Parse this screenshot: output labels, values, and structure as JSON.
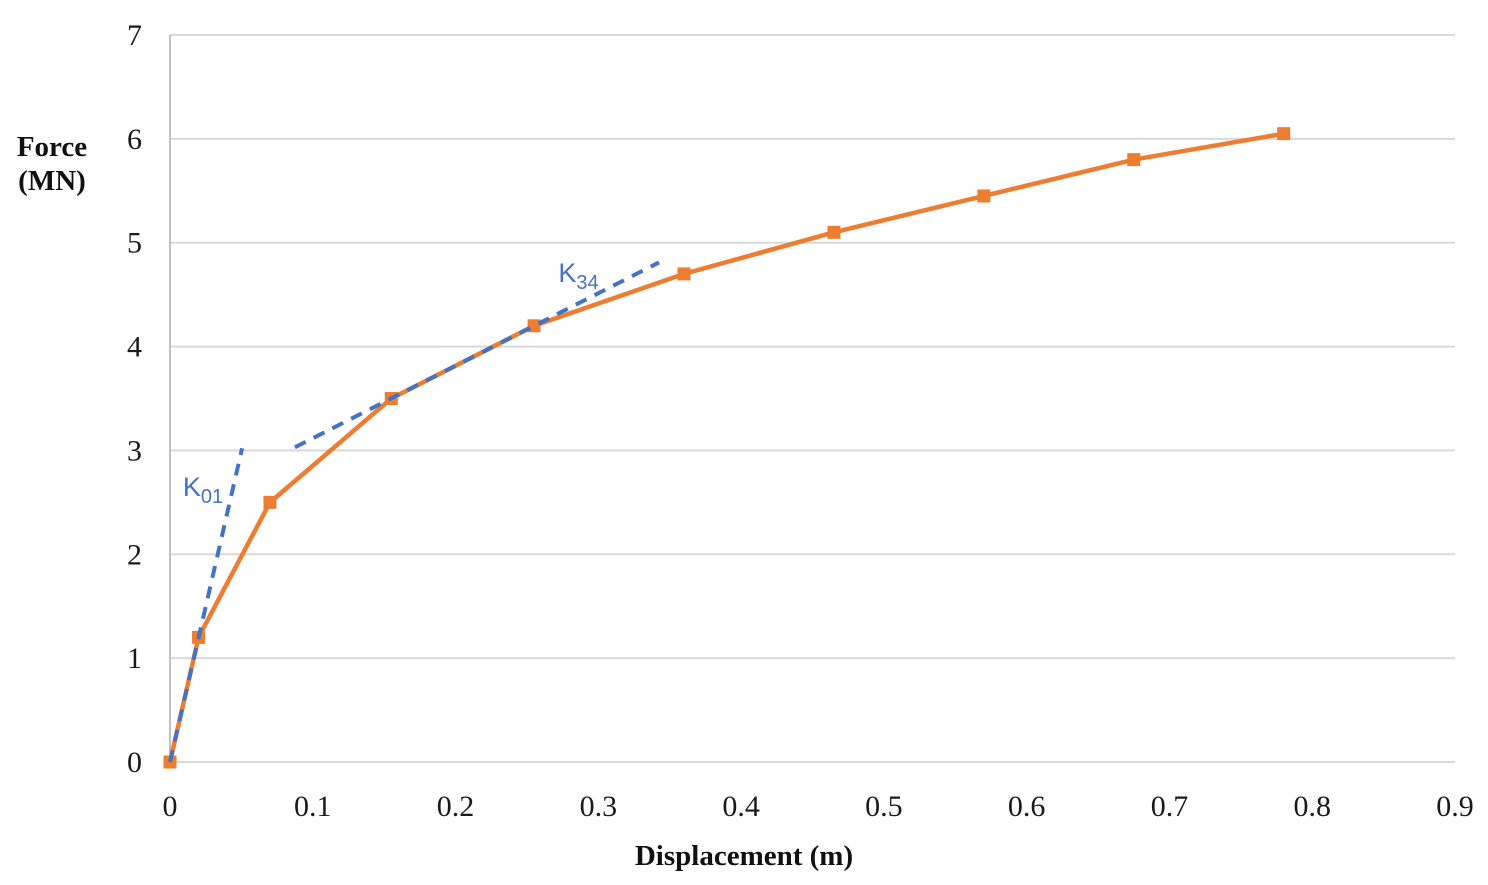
{
  "chart_data": {
    "type": "line",
    "title": "",
    "xlabel": "Displacement (m)",
    "ylabel": "Force (MN)",
    "ylabel_lines": [
      "Force",
      "(MN)"
    ],
    "xlim": [
      0,
      0.9
    ],
    "ylim": [
      0,
      7
    ],
    "x_ticks": [
      0,
      0.1,
      0.2,
      0.3,
      0.4,
      0.5,
      0.6,
      0.7,
      0.8,
      0.9
    ],
    "x_tick_labels": [
      "0",
      "0.1",
      "0.2",
      "0.3",
      "0.4",
      "0.5",
      "0.6",
      "0.7",
      "0.8",
      "0.9"
    ],
    "y_ticks": [
      0,
      1,
      2,
      3,
      4,
      5,
      6,
      7
    ],
    "y_tick_labels": [
      "0",
      "1",
      "2",
      "3",
      "4",
      "5",
      "6",
      "7"
    ],
    "grid": "horizontal",
    "legend": "none",
    "series": [
      {
        "name": "force-displacement-curve",
        "color": "#ED7D31",
        "marker": "square",
        "line_width": 4.5,
        "points": [
          [
            0,
            0
          ],
          [
            0.02,
            1.2
          ],
          [
            0.07,
            2.5
          ],
          [
            0.155,
            3.5
          ],
          [
            0.255,
            4.2
          ],
          [
            0.36,
            4.7
          ],
          [
            0.465,
            5.1
          ],
          [
            0.57,
            5.45
          ],
          [
            0.675,
            5.8
          ],
          [
            0.78,
            6.05
          ]
        ]
      }
    ],
    "annotations": [
      {
        "id": "k01",
        "text": "K01",
        "label": "K",
        "subscript": "01",
        "color": "#4472C4",
        "style": "dashed",
        "line": [
          [
            0,
            0
          ],
          [
            0.0505,
            3.02
          ]
        ],
        "label_pos": [
          0.009,
          2.56
        ]
      },
      {
        "id": "k34",
        "text": "K34",
        "label": "K",
        "subscript": "34",
        "color": "#4472C4",
        "style": "dashed",
        "line": [
          [
            0.0875,
            3.03
          ],
          [
            0.3425,
            4.81
          ]
        ],
        "label_pos": [
          0.272,
          4.62
        ]
      }
    ]
  },
  "colors": {
    "series_orange": "#ED7D31",
    "annotation_blue": "#4472C4",
    "gridline": "#D9D9D9",
    "axis_line": "#BFBFBF",
    "text": "#1a1a1a"
  }
}
